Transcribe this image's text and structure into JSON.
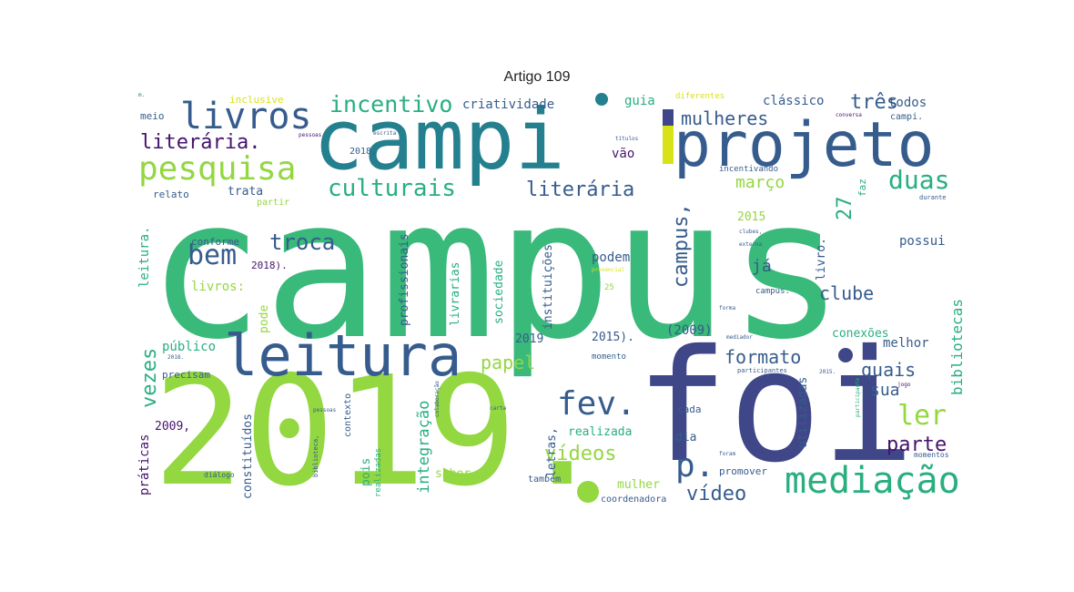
{
  "title": "Artigo 109",
  "colors": {
    "purple": "#45146b",
    "indigo": "#3f4788",
    "blue": "#365c8d",
    "teal": "#24808e",
    "green": "#29af7f",
    "mint": "#39b97a",
    "lime": "#93d741",
    "yellow": "#d8e219"
  },
  "words": {
    "campus": "campus",
    "foi": "foi",
    "y2019": "2019.",
    "campi": "campi",
    "projeto": "projeto",
    "leitura": "leitura",
    "livros": "livros",
    "pesquisa": "pesquisa",
    "mediacao": "mediação",
    "fev": "fev.",
    "incentivo": "incentivo",
    "culturais": "culturais",
    "literaria_dot": "literária.",
    "literaria": "literária",
    "duas": "duas",
    "bem": "bem",
    "troca": "troca",
    "mulheres": "mulheres",
    "tres": "três",
    "criatividade": "criatividade",
    "classico": "clássico",
    "todos": "todos",
    "marco": "março",
    "clube": "clube",
    "ler": "ler",
    "parte": "parte",
    "p": "p.",
    "videos": "vídeos",
    "video": "vídeo",
    "formato": "formato",
    "quais": "quais",
    "sua": "sua",
    "papel": "papel",
    "vezes": "vezes",
    "ja": "já",
    "campus_comma": "campus,",
    "n27": "27",
    "bibliotecas": "bibliotecas",
    "guia": "guia",
    "vao": "vão",
    "podem": "podem",
    "melhor": "melhor",
    "conexoes": "conexões",
    "possui": "possui",
    "y2015": "2015",
    "y2009p": "(2009)",
    "y2019s": "2019",
    "y2015p": "2015).",
    "livros_colon": "livros:",
    "conforme": "conforme",
    "y2018p": "2018).",
    "publico": "público",
    "precisam": "precisam",
    "y2009c": "2009,",
    "praticas": "práticas",
    "constituidos": "constituídos",
    "pois": "pois",
    "integracao": "integração",
    "saber": "saber",
    "mulher": "mulher",
    "realizada": "realizada",
    "dia": "dia",
    "cada": "cada",
    "promover": "promover",
    "coordenadora": "coordenadora",
    "tambem": "também",
    "letras": "letras,",
    "profissionais": "profissionais",
    "instituicoes": "instituições",
    "livrarias": "livrarias",
    "sociedade": "sociedade",
    "pode": "pode",
    "leitura_dot": "leitura.",
    "trata": "trata",
    "relato": "relato",
    "partir": "partir",
    "meio": "meio",
    "inclusive": "inclusive",
    "diferentes": "diferentes",
    "y2018c": "2018,",
    "incentivando": "incentivando",
    "livro": "livro.",
    "campus_dot": "campus.",
    "utilizadas": "utilizadas",
    "faz": "faz",
    "campi_dot": "campi.",
    "n25": "25",
    "momento": "momento",
    "contexto": "contexto",
    "realizadas": "realizadas",
    "biblioteca": "biblioteca,",
    "dialogo": "diálogo",
    "momentos": "momentos",
    "durante": "durante",
    "participantes": "participantes",
    "titulos": "títulos",
    "clubes": "clubes,",
    "externa": "externa",
    "presencial": "presencial",
    "mediador": "mediador",
    "forma": "forma",
    "jogo": "jogo",
    "escrita": "escrita",
    "pessoas": "pessoas",
    "colaboracao": "colaboração",
    "carta": "carta",
    "foram": "foram",
    "y2015d": "2015.",
    "y2018d": "2018.",
    "y2015b": "2015",
    "conversa": "conversa",
    "pessoas2": "pessoas",
    "participante": "participante",
    "m": "m."
  }
}
